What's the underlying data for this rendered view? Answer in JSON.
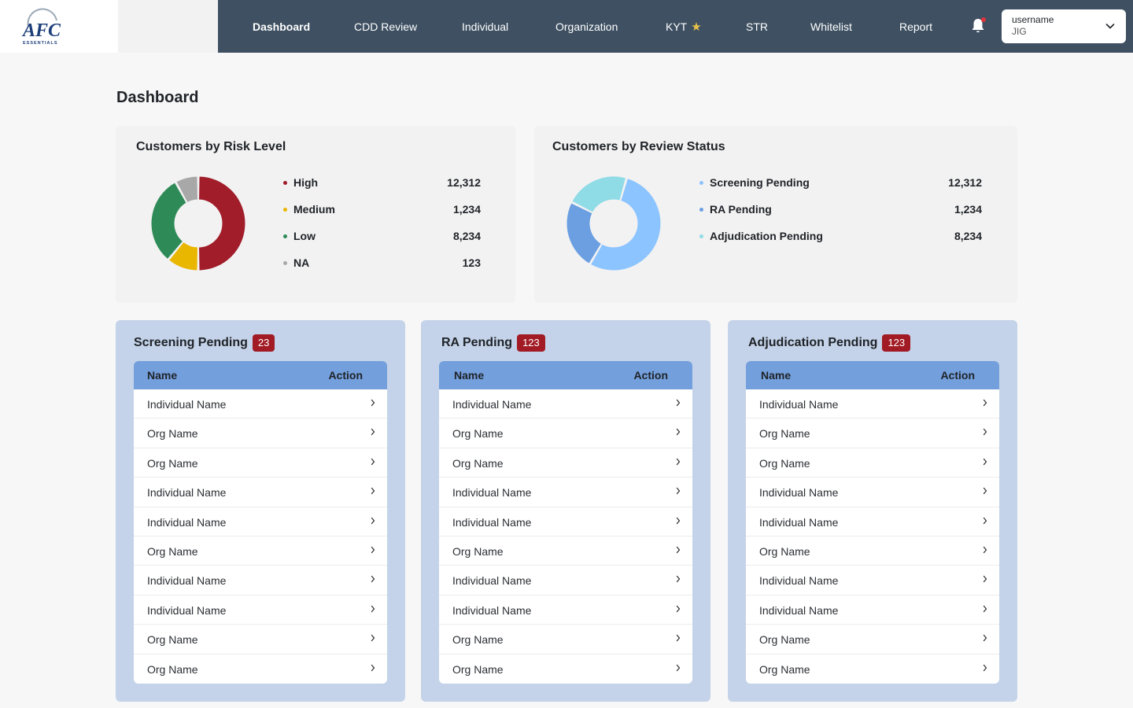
{
  "header": {
    "logo_text": "AFC",
    "logo_subtext": "ESSENTIALS",
    "nav": [
      {
        "label": "Dashboard",
        "active": true
      },
      {
        "label": "CDD Review",
        "active": false
      },
      {
        "label": "Individual",
        "active": false
      },
      {
        "label": "Organization",
        "active": false
      },
      {
        "label": "KYT",
        "active": false,
        "icon": "star-icon"
      },
      {
        "label": "STR",
        "active": false
      },
      {
        "label": "Whitelist",
        "active": false
      },
      {
        "label": "Report",
        "active": false
      }
    ],
    "user": {
      "username": "username",
      "org": "JIG"
    }
  },
  "page": {
    "title": "Dashboard"
  },
  "risk_card": {
    "title": "Customers by Risk Level",
    "items": [
      {
        "label": "High",
        "value": "12,312",
        "color": "#a11d2a"
      },
      {
        "label": "Medium",
        "value": "1,234",
        "color": "#e9b600"
      },
      {
        "label": "Low",
        "value": "8,234",
        "color": "#2e8b57"
      },
      {
        "label": "NA",
        "value": "123",
        "color": "#a8a8a8"
      }
    ]
  },
  "review_card": {
    "title": "Customers by Review Status",
    "items": [
      {
        "label": "Screening Pending",
        "value": "12,312",
        "color": "#8cc4ff"
      },
      {
        "label": "RA Pending",
        "value": "1,234",
        "color": "#6b9fe2"
      },
      {
        "label": "Adjudication Pending",
        "value": "8,234",
        "color": "#8fdbe6"
      }
    ]
  },
  "chart_data": [
    {
      "type": "pie",
      "title": "Customers by Risk Level",
      "categories": [
        "High",
        "Medium",
        "Low",
        "NA"
      ],
      "values": [
        50,
        11,
        31,
        8
      ],
      "colors": [
        "#a11d2a",
        "#e9b600",
        "#2e8b57",
        "#a8a8a8"
      ],
      "legend": "right"
    },
    {
      "type": "pie",
      "title": "Customers by Review Status",
      "categories": [
        "Screening Pending",
        "RA Pending",
        "Adjudication Pending"
      ],
      "values": [
        54,
        24,
        22
      ],
      "colors": [
        "#8cc4ff",
        "#6b9fe2",
        "#8fdbe6"
      ],
      "legend": "right"
    }
  ],
  "panels": [
    {
      "title": "Screening Pending",
      "count": "23",
      "col_name": "Name",
      "col_action": "Action",
      "rows": [
        "Individual Name",
        "Org Name",
        "Org Name",
        "Individual Name",
        "Individual Name",
        "Org Name",
        "Individual Name",
        "Individual Name",
        "Org Name",
        "Org Name"
      ]
    },
    {
      "title": "RA Pending",
      "count": "123",
      "col_name": "Name",
      "col_action": "Action",
      "rows": [
        "Individual Name",
        "Org Name",
        "Org Name",
        "Individual Name",
        "Individual Name",
        "Org Name",
        "Individual Name",
        "Individual Name",
        "Org Name",
        "Org Name"
      ]
    },
    {
      "title": "Adjudication Pending",
      "count": "123",
      "col_name": "Name",
      "col_action": "Action",
      "rows": [
        "Individual Name",
        "Org Name",
        "Org Name",
        "Individual Name",
        "Individual Name",
        "Org Name",
        "Individual Name",
        "Individual Name",
        "Org Name",
        "Org Name"
      ]
    }
  ]
}
